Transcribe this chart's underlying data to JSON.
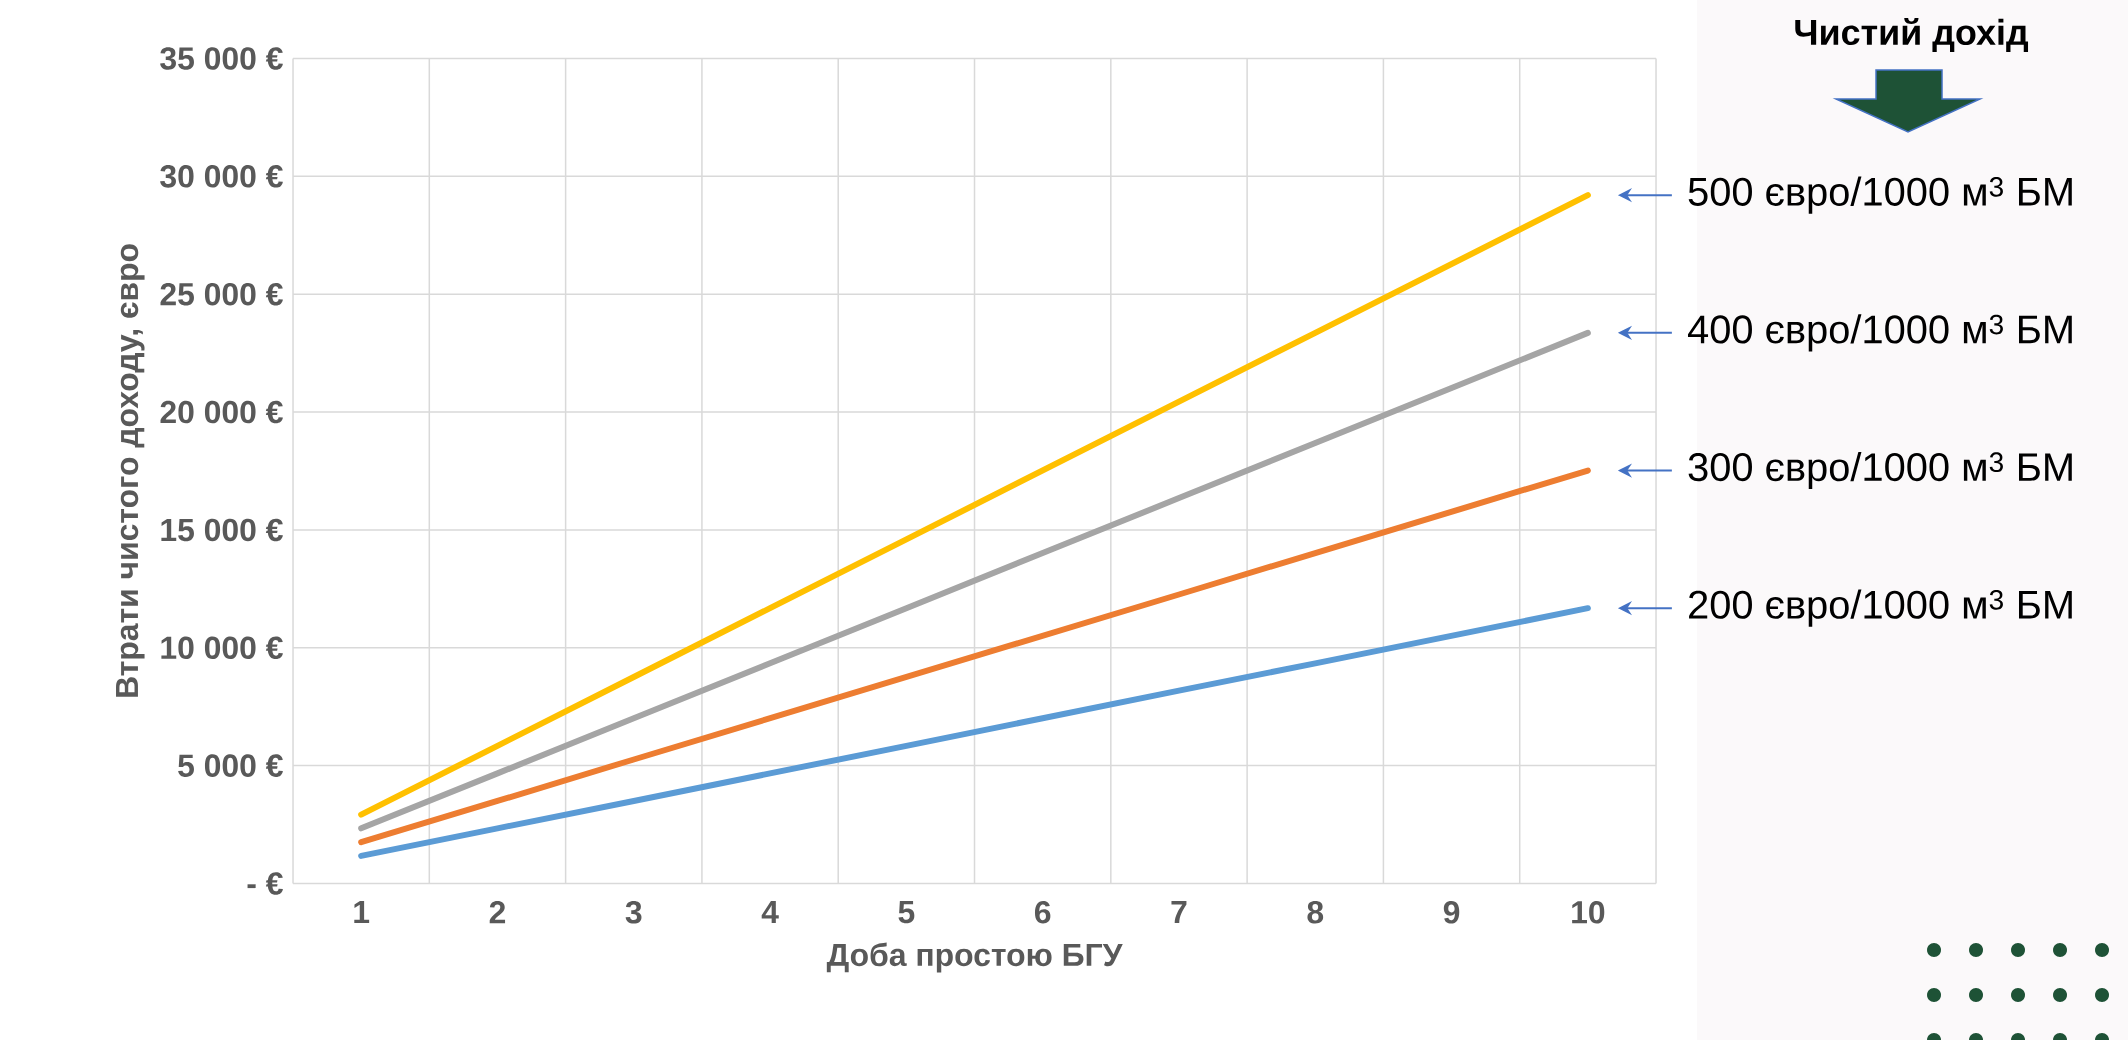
{
  "chart_data": {
    "type": "line",
    "legend_title": "Чистий дохід",
    "xlabel": "Доба простою БГУ",
    "ylabel": "Втрати чистого доходу, євро",
    "categories": [
      "1",
      "2",
      "3",
      "4",
      "5",
      "6",
      "7",
      "8",
      "9",
      "10"
    ],
    "series": [
      {
        "name": "200 євро/1000 м$^{3}$ БМ",
        "color": "#5b9bd5",
        "values": [
          1170,
          2340,
          3500,
          4670,
          5840,
          7010,
          8180,
          9340,
          10510,
          11680
        ]
      },
      {
        "name": "300 євро/1000 м$^{3}$ БМ",
        "color": "#ed7d31",
        "values": [
          1750,
          3500,
          5260,
          7010,
          8760,
          10510,
          12260,
          14020,
          15770,
          17520
        ]
      },
      {
        "name": "400 євро/1000 м$^{3}$ БМ",
        "color": "#a5a5a5",
        "values": [
          2340,
          4670,
          7010,
          9340,
          11680,
          14020,
          16350,
          18690,
          21020,
          23360
        ]
      },
      {
        "name": "500 євро/1000 м$^{3}$ БМ",
        "color": "#ffc000",
        "values": [
          2920,
          5840,
          8760,
          11680,
          14600,
          17520,
          20440,
          23360,
          26280,
          29200
        ]
      }
    ],
    "ylim": [
      0,
      35000
    ],
    "yticks": [
      {
        "value": 0,
        "label": "- €"
      },
      {
        "value": 5000,
        "label": "5 000 €"
      },
      {
        "value": 10000,
        "label": "10 000 €"
      },
      {
        "value": 15000,
        "label": "15 000 €"
      },
      {
        "value": 20000,
        "label": "20 000 €"
      },
      {
        "value": 25000,
        "label": "25 000 €"
      },
      {
        "value": 30000,
        "label": "30 000 €"
      },
      {
        "value": 35000,
        "label": "35 000 €"
      }
    ],
    "grid": true,
    "marker": "none",
    "line_style": "solid"
  }
}
